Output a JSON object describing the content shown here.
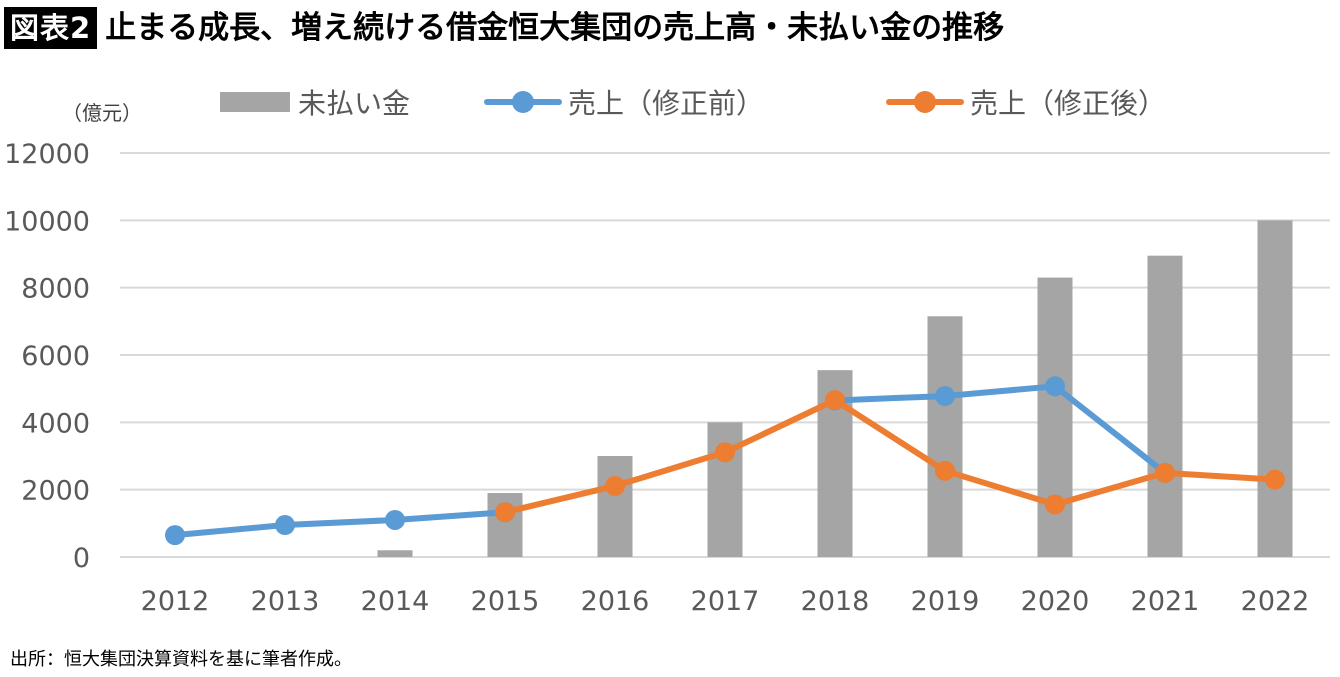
{
  "header": {
    "badge": "図表2",
    "title": "止まる成長、増え続ける借金恒大集団の売上高・未払い金の推移"
  },
  "unit_label": "（億元）",
  "source_note": "出所：恒大集団決算資料を基に筆者作成。",
  "chart_data": {
    "type": "bar",
    "title": "止まる成長、増え続ける借金恒大集団の売上高・未払い金の推移",
    "ylabel": "（億元）",
    "xlabel": "",
    "ylim": [
      0,
      12000
    ],
    "yticks": [
      0,
      2000,
      4000,
      6000,
      8000,
      10000,
      12000
    ],
    "grid": true,
    "legend_position": "top",
    "categories": [
      "2012",
      "2013",
      "2014",
      "2015",
      "2016",
      "2017",
      "2018",
      "2019",
      "2020",
      "2021",
      "2022"
    ],
    "series": [
      {
        "name": "未払い金",
        "kind": "bar",
        "color": "#a5a5a5",
        "values": [
          null,
          null,
          200,
          1900,
          3000,
          4000,
          5550,
          7150,
          8300,
          8950,
          10000
        ]
      },
      {
        "name": "売上（修正前）",
        "kind": "line",
        "color": "#5b9bd5",
        "values": [
          650,
          950,
          1100,
          1330,
          null,
          null,
          4650,
          4780,
          5070,
          2500,
          null
        ]
      },
      {
        "name": "売上（修正後）",
        "kind": "line",
        "color": "#ed7d31",
        "values": [
          null,
          null,
          null,
          1330,
          2110,
          3110,
          4660,
          2560,
          1560,
          2500,
          2300
        ]
      }
    ]
  }
}
